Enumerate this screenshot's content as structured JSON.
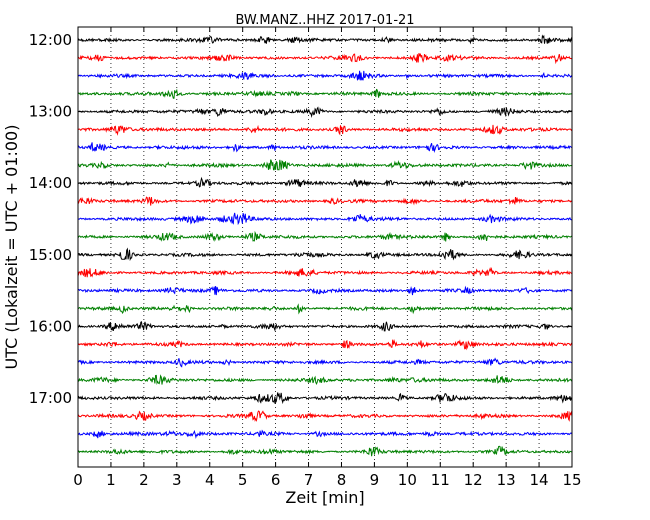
{
  "chart_data": {
    "type": "line",
    "title": "BW.MANZ..HHZ 2017-01-21",
    "xlabel": "Zeit  [min]",
    "ylabel": "UTC (Lokalzeit = UTC + 01:00)",
    "xlim": [
      0,
      15
    ],
    "x_ticks": [
      0,
      1,
      2,
      3,
      4,
      5,
      6,
      7,
      8,
      9,
      10,
      11,
      12,
      13,
      14,
      15
    ],
    "x_tick_labels": [
      "0",
      "1",
      "2",
      "3",
      "4",
      "5",
      "6",
      "7",
      "8",
      "9",
      "10",
      "11",
      "12",
      "13",
      "14",
      "15"
    ],
    "y_ticks": [
      "12:00",
      "13:00",
      "14:00",
      "15:00",
      "16:00",
      "17:00"
    ],
    "grid": "vertical dotted",
    "legend": "none",
    "trace_interval_min": 15,
    "traces": [
      "12:00",
      "12:15",
      "12:30",
      "12:45",
      "13:00",
      "13:15",
      "13:30",
      "13:45",
      "14:00",
      "14:15",
      "14:30",
      "14:45",
      "15:00",
      "15:15",
      "15:30",
      "15:45",
      "16:00",
      "16:15",
      "16:30",
      "16:45",
      "17:00",
      "17:15",
      "17:30",
      "17:45"
    ],
    "trace_colors": [
      "#000000",
      "#ff0000",
      "#0000ff",
      "#008000"
    ]
  }
}
